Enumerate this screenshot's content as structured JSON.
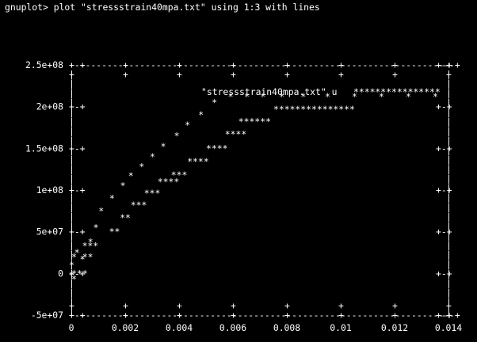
{
  "window": {
    "background": "#000000",
    "foreground": "#ffffff"
  },
  "terminal": {
    "prompt": "gnuplot>",
    "command": "plot \"stressstrain40mpa.txt\" using 1:3 with lines",
    "full_line": "gnuplot> plot \"stressstrain40mpa.txt\" using 1:3 with lines"
  },
  "chart_data": {
    "type": "line",
    "render_style": "ascii-dumb-terminal",
    "title": "",
    "xlabel": "",
    "ylabel": "",
    "xlim": [
      0,
      0.014
    ],
    "ylim": [
      -50000000,
      250000000
    ],
    "x_ticks": [
      "0",
      "0.002",
      "0.004",
      "0.006",
      "0.008",
      "0.01",
      "0.012",
      "0.014"
    ],
    "y_ticks": [
      "-5e+07",
      "0",
      "5e+07",
      "1e+08",
      "1.5e+08",
      "2e+08",
      "2.5e+08"
    ],
    "legend": {
      "placement": "top-right",
      "label": "\"stressstrain40mpa.txt\" u",
      "symbol": "****************"
    },
    "series": [
      {
        "name": "\"stressstrain40mpa.txt\" u",
        "marker": "*",
        "x": [
          0,
          0,
          0.0002,
          0.0004,
          0.0007,
          0.0009,
          0.0011,
          0.0015,
          0.0019,
          0.0022,
          0.0026,
          0.003,
          0.0034,
          0.0039,
          0.0043,
          0.0048,
          0.0053,
          0.0059,
          0.0065,
          0.0071,
          0.0078,
          0.0086,
          0.0095,
          0.0105,
          0.0115,
          0.0125,
          0.0135
        ],
        "y": [
          -2000000,
          10000000,
          25000000,
          17000000,
          38000000,
          55000000,
          75000000,
          90000000,
          105000000,
          117000000,
          128000000,
          140000000,
          152000000,
          165000000,
          178000000,
          190000000,
          205000000,
          212000000,
          212000000,
          212000000,
          212000000,
          212000000,
          212000000,
          212000000,
          212000000,
          212000000,
          212000000
        ]
      }
    ],
    "ascii_rows": [
      "                    ***",
      "                 *  **",
      "                  ***",
      "                   **",
      "                    **",
      "                     ***",
      "                      ***",
      "                       ****",
      "                          ***",
      "                           ****",
      "                             ****",
      "                                ****",
      "                                   ******",
      "                                         ***************"
    ],
    "grid": false,
    "border": true
  }
}
